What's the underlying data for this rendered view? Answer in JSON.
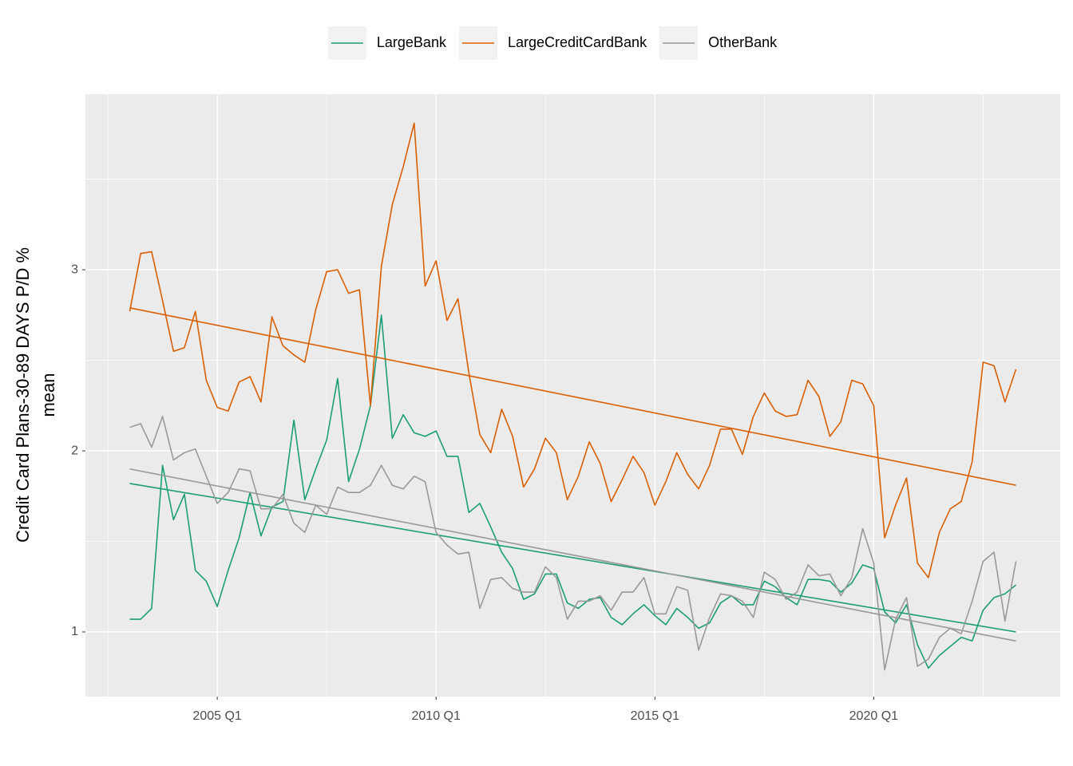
{
  "chart_data": {
    "type": "line",
    "y_label": [
      "Credit Card Plans-30-89 DAYS P/D %",
      "mean"
    ],
    "legend": "top",
    "grid": true,
    "x": [
      "2003 Q1",
      "2003 Q2",
      "2003 Q3",
      "2003 Q4",
      "2004 Q1",
      "2004 Q2",
      "2004 Q3",
      "2004 Q4",
      "2005 Q1",
      "2005 Q2",
      "2005 Q3",
      "2005 Q4",
      "2006 Q1",
      "2006 Q2",
      "2006 Q3",
      "2006 Q4",
      "2007 Q1",
      "2007 Q2",
      "2007 Q3",
      "2007 Q4",
      "2008 Q1",
      "2008 Q2",
      "2008 Q3",
      "2008 Q4",
      "2009 Q1",
      "2009 Q2",
      "2009 Q3",
      "2009 Q4",
      "2010 Q1",
      "2010 Q2",
      "2010 Q3",
      "2010 Q4",
      "2011 Q1",
      "2011 Q2",
      "2011 Q3",
      "2011 Q4",
      "2012 Q1",
      "2012 Q2",
      "2012 Q3",
      "2012 Q4",
      "2013 Q1",
      "2013 Q2",
      "2013 Q3",
      "2013 Q4",
      "2014 Q1",
      "2014 Q2",
      "2014 Q3",
      "2014 Q4",
      "2015 Q1",
      "2015 Q2",
      "2015 Q3",
      "2015 Q4",
      "2016 Q1",
      "2016 Q2",
      "2016 Q3",
      "2016 Q4",
      "2017 Q1",
      "2017 Q2",
      "2017 Q3",
      "2017 Q4",
      "2018 Q1",
      "2018 Q2",
      "2018 Q3",
      "2018 Q4",
      "2019 Q1",
      "2019 Q2",
      "2019 Q3",
      "2019 Q4",
      "2020 Q1",
      "2020 Q2",
      "2020 Q3",
      "2020 Q4",
      "2021 Q1",
      "2021 Q2",
      "2021 Q3",
      "2021 Q4",
      "2022 Q1",
      "2022 Q2",
      "2022 Q3",
      "2022 Q4",
      "2023 Q1",
      "2023 Q2"
    ],
    "xticks": [
      "2005 Q1",
      "2010 Q1",
      "2015 Q1",
      "2020 Q1"
    ],
    "ylim": [
      0.643,
      3.97
    ],
    "yticks": [
      1,
      2,
      3
    ],
    "series": [
      {
        "name": "LargeBank",
        "color": "#1b9e77",
        "trend": [
          1.82,
          1.0
        ],
        "values": [
          1.07,
          1.07,
          1.13,
          1.92,
          1.62,
          1.76,
          1.34,
          1.28,
          1.14,
          1.34,
          1.52,
          1.77,
          1.53,
          1.69,
          1.72,
          2.17,
          1.73,
          1.9,
          2.06,
          2.4,
          1.83,
          2.01,
          2.25,
          2.75,
          2.07,
          2.2,
          2.1,
          2.08,
          2.11,
          1.97,
          1.97,
          1.66,
          1.71,
          1.58,
          1.44,
          1.35,
          1.18,
          1.21,
          1.32,
          1.32,
          1.16,
          1.13,
          1.18,
          1.19,
          1.08,
          1.04,
          1.1,
          1.15,
          1.09,
          1.04,
          1.13,
          1.08,
          1.02,
          1.05,
          1.16,
          1.2,
          1.15,
          1.15,
          1.28,
          1.25,
          1.19,
          1.15,
          1.29,
          1.29,
          1.28,
          1.22,
          1.27,
          1.37,
          1.35,
          1.11,
          1.05,
          1.15,
          0.93,
          0.8,
          0.87,
          0.92,
          0.97,
          0.95,
          1.12,
          1.19,
          1.21,
          1.26
        ]
      },
      {
        "name": "LargeCreditCardBank",
        "color": "#d95f02",
        "trend": [
          2.79,
          1.81
        ],
        "values": [
          2.77,
          3.09,
          3.1,
          2.83,
          2.55,
          2.57,
          2.77,
          2.39,
          2.24,
          2.22,
          2.38,
          2.41,
          2.27,
          2.74,
          2.58,
          2.53,
          2.49,
          2.78,
          2.99,
          3.0,
          2.87,
          2.89,
          2.25,
          3.02,
          3.36,
          3.57,
          3.81,
          2.91,
          3.05,
          2.72,
          2.84,
          2.43,
          2.09,
          1.99,
          2.23,
          2.08,
          1.8,
          1.9,
          2.07,
          1.99,
          1.73,
          1.86,
          2.05,
          1.93,
          1.72,
          1.84,
          1.97,
          1.88,
          1.7,
          1.83,
          1.99,
          1.87,
          1.79,
          1.92,
          2.12,
          2.12,
          1.98,
          2.19,
          2.32,
          2.22,
          2.19,
          2.2,
          2.39,
          2.3,
          2.08,
          2.16,
          2.39,
          2.37,
          2.25,
          1.52,
          1.7,
          1.85,
          1.38,
          1.3,
          1.55,
          1.68,
          1.72,
          1.94,
          2.49,
          2.47,
          2.27,
          2.45
        ]
      },
      {
        "name": "OtherBank",
        "color": "#999999",
        "trend": [
          1.9,
          0.95
        ],
        "values": [
          2.13,
          2.15,
          2.02,
          2.19,
          1.95,
          1.99,
          2.01,
          1.86,
          1.71,
          1.77,
          1.9,
          1.89,
          1.68,
          1.68,
          1.76,
          1.6,
          1.55,
          1.7,
          1.65,
          1.8,
          1.77,
          1.77,
          1.81,
          1.92,
          1.81,
          1.79,
          1.86,
          1.83,
          1.55,
          1.48,
          1.43,
          1.44,
          1.13,
          1.29,
          1.3,
          1.24,
          1.22,
          1.22,
          1.36,
          1.3,
          1.07,
          1.17,
          1.17,
          1.2,
          1.12,
          1.22,
          1.22,
          1.3,
          1.1,
          1.1,
          1.25,
          1.23,
          0.9,
          1.08,
          1.21,
          1.2,
          1.17,
          1.08,
          1.33,
          1.29,
          1.18,
          1.22,
          1.37,
          1.31,
          1.32,
          1.2,
          1.3,
          1.57,
          1.38,
          0.79,
          1.07,
          1.19,
          0.81,
          0.85,
          0.97,
          1.02,
          0.99,
          1.17,
          1.39,
          1.44,
          1.06,
          1.39
        ]
      }
    ]
  }
}
